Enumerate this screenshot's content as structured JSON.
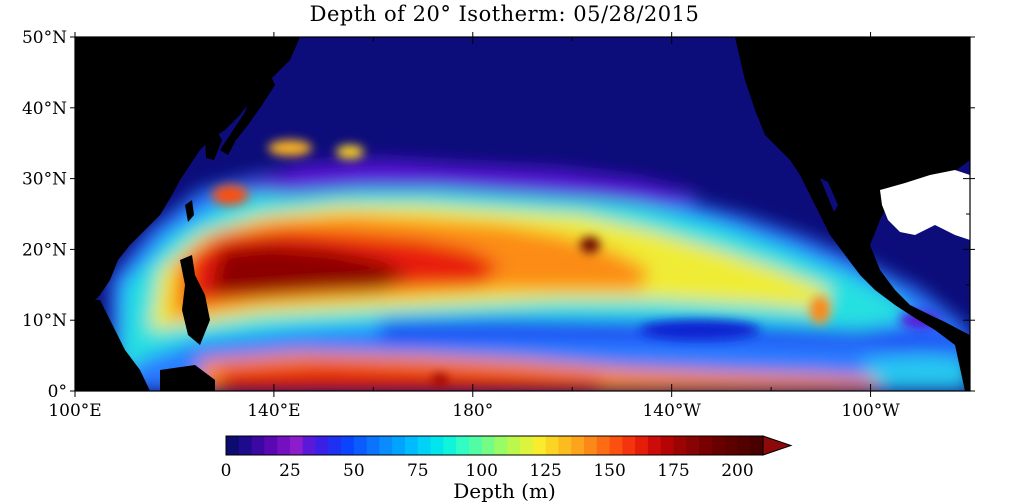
{
  "title": "Depth of 20° Isotherm: 05/28/2015",
  "map": {
    "region": "Pacific Ocean",
    "lon_range": [
      100,
      280
    ],
    "lat_range": [
      0,
      50
    ],
    "land_color": "#000000",
    "missing_color": "#ffffff"
  },
  "lat_labels": [
    "50°N",
    "40°N",
    "30°N",
    "20°N",
    "10°N",
    "0°"
  ],
  "lon_labels": [
    "100°E",
    "140°E",
    "180°",
    "140°W",
    "100°W"
  ],
  "colorbar": {
    "title": "Depth (m)",
    "min": 0,
    "max": 210,
    "step": 5,
    "tick_labels": [
      "0",
      "25",
      "50",
      "75",
      "100",
      "125",
      "150",
      "175",
      "200"
    ],
    "extend": "max",
    "colors": [
      "#0c0c6e",
      "#1e0a8c",
      "#3c08a4",
      "#5a08b4",
      "#7410c0",
      "#8c1ccc",
      "#5a18d8",
      "#3a20e6",
      "#1e30f2",
      "#0a44ff",
      "#0a5cff",
      "#0a74ff",
      "#0a8cff",
      "#00a4ff",
      "#00bcff",
      "#00d2f8",
      "#00e6ec",
      "#10f4dc",
      "#30fcc4",
      "#50fca4",
      "#74fc84",
      "#98fc64",
      "#bcf84c",
      "#dcf43c",
      "#f8ec2c",
      "#fcd424",
      "#fcbc20",
      "#fca41c",
      "#fc8818",
      "#fc6c14",
      "#fc5010",
      "#f4340c",
      "#e41c08",
      "#cc0c08",
      "#b40404",
      "#9c0404",
      "#880404",
      "#780000",
      "#680000",
      "#5c0000",
      "#520000",
      "#480000"
    ]
  }
}
